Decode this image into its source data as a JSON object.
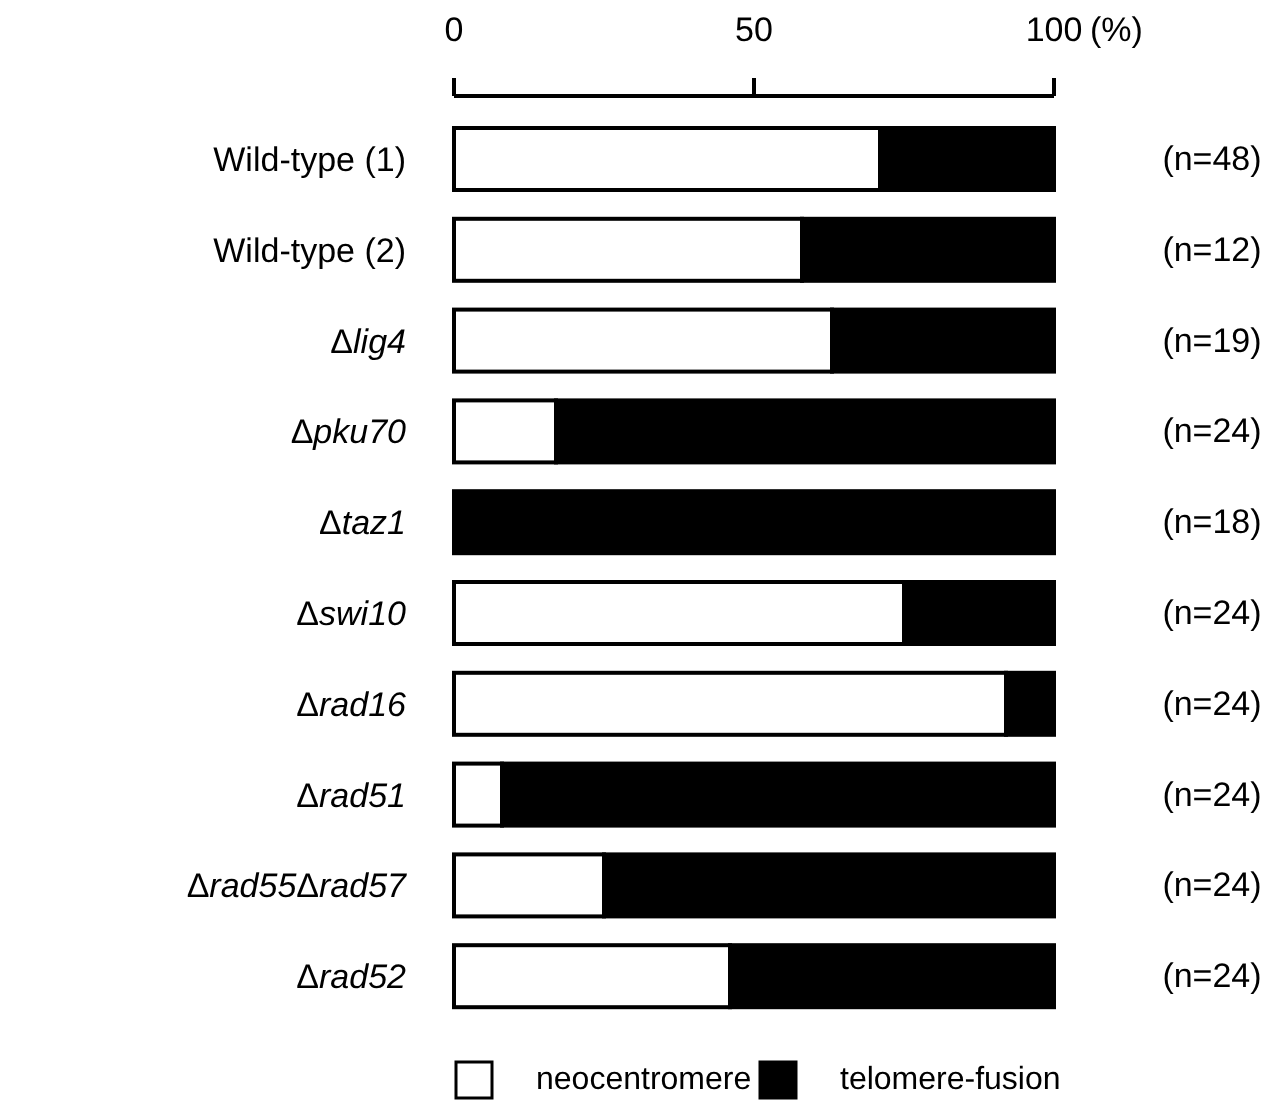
{
  "chart_data": {
    "type": "bar",
    "orientation": "horizontal",
    "stacked": true,
    "xlabel": "(%)",
    "categories": [
      "Wild-type (1)",
      "Wild-type (2)",
      "Δlig4",
      "Δpku70",
      "Δtaz1",
      "Δswi10",
      "Δrad16",
      "Δrad51",
      "Δrad55Δrad57",
      "Δrad52"
    ],
    "series": [
      {
        "name": "neocentromere",
        "color": "#ffffff",
        "values": [
          71,
          58,
          63,
          17,
          0,
          75,
          92,
          8,
          25,
          46
        ]
      },
      {
        "name": "telomere-fusion",
        "color": "#000000",
        "values": [
          29,
          42,
          37,
          83,
          100,
          25,
          8,
          92,
          75,
          54
        ]
      }
    ],
    "xlim": [
      0,
      100
    ],
    "xticks": [
      0,
      50,
      100
    ],
    "grid": false,
    "legend": "bottom",
    "annotations": [
      "(n=48)",
      "(n=12)",
      "(n=19)",
      "(n=24)",
      "(n=18)",
      "(n=24)",
      "(n=24)",
      "(n=24)",
      "(n=24)",
      "(n=24)"
    ]
  }
}
